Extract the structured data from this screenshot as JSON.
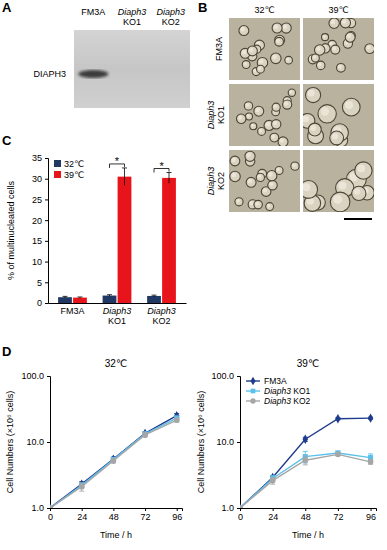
{
  "blot": {
    "panel": "A",
    "lanes": [
      "FM3A",
      "Diaph3 KO1",
      "Diaph3 KO2"
    ],
    "protein": "DIAPH3",
    "bands": [
      true,
      false,
      false
    ]
  },
  "micrographs": {
    "panel": "B",
    "columns": [
      "32℃",
      "39℃"
    ],
    "rows": [
      "FM3A",
      "Diaph3 KO1",
      "Diaph3 KO2"
    ]
  },
  "chart_data": [
    {
      "panel": "C",
      "type": "bar",
      "ylabel": "% of multinucleated cells",
      "categories": [
        "FM3A",
        "Diaph3 KO1",
        "Diaph3 KO2"
      ],
      "series": [
        {
          "name": "32℃",
          "color": "#1f3864",
          "values": [
            1.4,
            1.8,
            1.7
          ],
          "errors": [
            0.2,
            0.2,
            0.2
          ]
        },
        {
          "name": "39℃",
          "color": "#e8141b",
          "values": [
            1.3,
            30.5,
            30.2
          ],
          "errors": [
            0.15,
            2.1,
            1.3
          ]
        }
      ],
      "ylim": [
        0,
        35
      ],
      "yticks": [
        0,
        5,
        10,
        15,
        20,
        25,
        30,
        35
      ],
      "legend": "upper left",
      "annotations": [
        {
          "text": "*",
          "category": "Diaph3 KO1"
        },
        {
          "text": "*",
          "category": "Diaph3 KO2"
        }
      ]
    },
    {
      "panel": "D",
      "type": "line",
      "title": "32℃",
      "xlabel": "Time / h",
      "ylabel": "Cell Numbers (×10⁶ cells)",
      "x": [
        0,
        24,
        48,
        72,
        96
      ],
      "series": [
        {
          "color": "#1f3b8c",
          "marker": "diamond",
          "values": [
            1,
            2.3,
            5.5,
            13.5,
            25
          ],
          "errors": [
            0,
            0.2,
            0.4,
            0.8,
            2.0
          ]
        },
        {
          "color": "#5bc0eb",
          "marker": "square",
          "values": [
            1,
            2.2,
            5.4,
            13.3,
            23
          ],
          "errors": [
            0,
            0.2,
            0.4,
            0.8,
            1.8
          ]
        },
        {
          "color": "#a6a6a6",
          "marker": "circle",
          "values": [
            1,
            2.1,
            5.2,
            12.8,
            21.5
          ],
          "errors": [
            0,
            0.3,
            0.4,
            0.8,
            1.5
          ]
        }
      ],
      "xlim": [
        0,
        100
      ],
      "xticks": [
        0,
        24,
        48,
        72,
        96
      ],
      "ylim": [
        1,
        100
      ],
      "yticks": [
        {
          "value": 1,
          "label": "1.0"
        },
        {
          "value": 10,
          "label": "10.0"
        },
        {
          "value": 100,
          "label": "100.0"
        }
      ],
      "log": "y"
    },
    {
      "type": "line",
      "title": "39℃",
      "xlabel": "Time / h",
      "ylabel": "Cell Numbers (×10⁶ cells)",
      "x": [
        0,
        24,
        48,
        72,
        96
      ],
      "series": [
        {
          "name": "FM3A",
          "color": "#1f3b8c",
          "marker": "diamond",
          "values": [
            1,
            2.9,
            11,
            22.5,
            23
          ],
          "errors": [
            0,
            0.2,
            0.8,
            0.8,
            0.8
          ]
        },
        {
          "name": "Diaph3 KO1",
          "color": "#5bc0eb",
          "marker": "square",
          "values": [
            1,
            2.8,
            6,
            6.8,
            5.8
          ],
          "errors": [
            0,
            0.3,
            1.2,
            0.5,
            0.8
          ]
        },
        {
          "name": "Diaph3 KO2",
          "color": "#a6a6a6",
          "marker": "circle",
          "values": [
            1,
            2.6,
            5.3,
            6.5,
            5.0
          ],
          "errors": [
            0,
            0.3,
            0.8,
            0.3,
            0.4
          ]
        }
      ],
      "xlim": [
        0,
        100
      ],
      "xticks": [
        0,
        24,
        48,
        72,
        96
      ],
      "ylim": [
        1,
        100
      ],
      "yticks": [
        {
          "value": 1,
          "label": "1.0"
        },
        {
          "value": 10,
          "label": "10.0"
        },
        {
          "value": 100,
          "label": "100.0"
        }
      ],
      "log": "y",
      "legend": "upper left"
    }
  ]
}
